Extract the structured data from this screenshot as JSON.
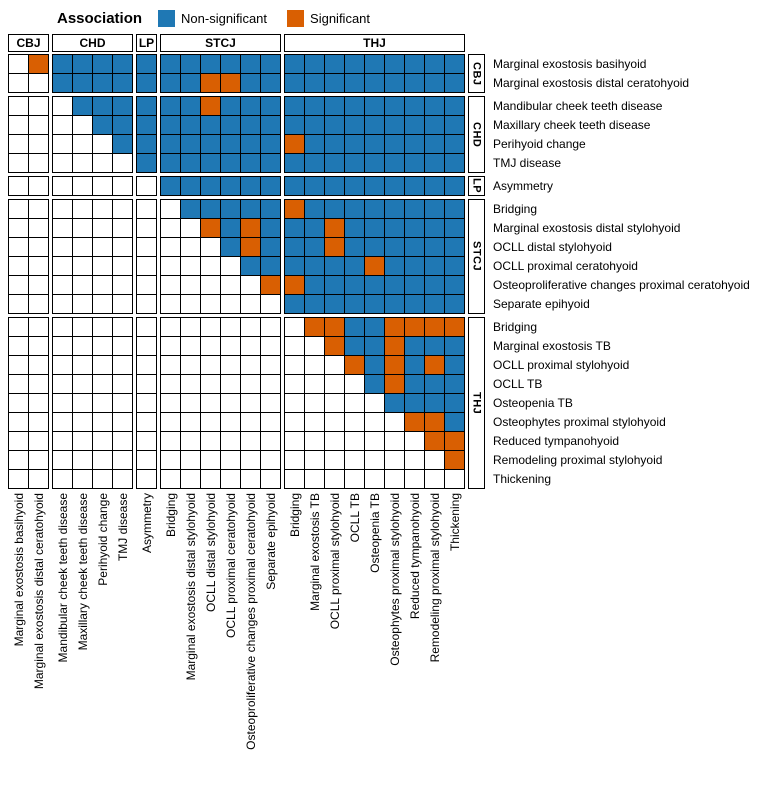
{
  "legend": {
    "title": "Association",
    "items": [
      {
        "key": "non_significant",
        "label": "Non-significant",
        "color": "#1F78B4"
      },
      {
        "key": "significant",
        "label": "Significant",
        "color": "#D95F02"
      }
    ]
  },
  "colors": {
    "non_significant": "#1F78B4",
    "significant": "#D95F02",
    "empty": "#FFFFFF",
    "grid": "#000000"
  },
  "chart_data": {
    "type": "heatmap",
    "legend_title": "Association",
    "legend_position": "top",
    "legend_entries": [
      "Non-significant",
      "Significant"
    ],
    "cell_codes": {
      "W": "empty",
      "B": "non-significant",
      "O": "significant"
    },
    "groups": [
      {
        "name": "CBJ",
        "size": 2
      },
      {
        "name": "CHD",
        "size": 4
      },
      {
        "name": "LP",
        "size": 1
      },
      {
        "name": "STCJ",
        "size": 6
      },
      {
        "name": "THJ",
        "size": 9
      }
    ],
    "categories": [
      "Marginal exostosis basihyoid",
      "Marginal exostosis distal ceratohyoid",
      "Mandibular cheek teeth disease",
      "Maxillary cheek teeth disease",
      "Perihyoid change",
      "TMJ disease",
      "Asymmetry",
      "Bridging",
      "Marginal exostosis distal stylohyoid",
      "OCLL distal stylohyoid",
      "OCLL proximal ceratohyoid",
      "Osteoproliferative changes proximal ceratohyoid",
      "Separate epihyoid",
      "Bridging",
      "Marginal exostosis TB",
      "OCLL proximal stylohyoid",
      "OCLL TB",
      "Osteopenia TB",
      "Osteophytes proximal stylohyoid",
      "Reduced tympanohyoid",
      "Remodeling proximal stylohyoid",
      "Thickening"
    ],
    "matrix": [
      "WOBBBBBBBBBBBBBBBBBBBB",
      "WWBBBBBBBOOBBBBBBBBBBB",
      "WWWBBBBBBOBBBBBBBBBBBB",
      "WWWWBBBBBBBBBBBBBBBBBB",
      "WWWWWBBBBBBBBOBBBBBBBB",
      "WWWWWWBBBBBBBBBBBBBBBB",
      "WWWWWWWBBBBBBBBBBBBBBB",
      "WWWWWWWWBBBBBOBBBBBBBB",
      "WWWWWWWWWOBOBBBOBBBBBB",
      "WWWWWWWWWWBOBBBOBBBBBB",
      "WWWWWWWWWWWBBBBBBOBBBB",
      "WWWWWWWWWWWWOOBBBBBBBB",
      "WWWWWWWWWWWWWBBBBBBBBB",
      "WWWWWWWWWWWWWWOOBBOOOO",
      "WWWWWWWWWWWWWWWOBBOBBB",
      "WWWWWWWWWWWWWWWWOBOBOB",
      "WWWWWWWWWWWWWWWWWBOBBB",
      "WWWWWWWWWWWWWWWWWWBBBB",
      "WWWWWWWWWWWWWWWWWWWOOB",
      "WWWWWWWWWWWWWWWWWWWWOO",
      "WWWWWWWWWWWWWWWWWWWWWO",
      "WWWWWWWWWWWWWWWWWWWWWW"
    ]
  }
}
